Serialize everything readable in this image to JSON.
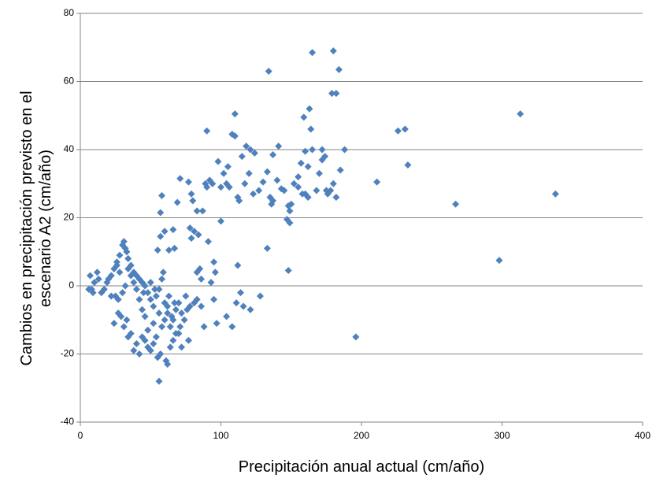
{
  "chart_data": {
    "type": "scatter",
    "color": "#4f81bd",
    "grid": true,
    "xlabel": "Precipitación anual actual (cm/año)",
    "ylabel": [
      "Cambios en precipitación  previsto en el",
      "escenario A2  (cm/año)"
    ],
    "xlim": [
      0,
      400
    ],
    "xticks": [
      0,
      100,
      200,
      300,
      400
    ],
    "ylim": [
      -40,
      80
    ],
    "yticks": [
      -40,
      -20,
      0,
      20,
      40,
      60,
      80
    ],
    "x": [
      338,
      313,
      298,
      267,
      233,
      231,
      226,
      211,
      196,
      188,
      185,
      184,
      182,
      179,
      180,
      165,
      134,
      163,
      159,
      164,
      110,
      90,
      108,
      110,
      98,
      102,
      105,
      118,
      121,
      124,
      115,
      137,
      133,
      130,
      143,
      148,
      149,
      147,
      149,
      150,
      148,
      133,
      128,
      114,
      116,
      121,
      111,
      108,
      104,
      97,
      95,
      96,
      95,
      93,
      91,
      88,
      83,
      86,
      83,
      84,
      81,
      78,
      79,
      83,
      77,
      79,
      80,
      71,
      69,
      66,
      63,
      67,
      60,
      57,
      57,
      58,
      55,
      62,
      63,
      60,
      61,
      62,
      57,
      56,
      55,
      54,
      52,
      50,
      48,
      46,
      44,
      42,
      40,
      38,
      36,
      34,
      33,
      31,
      29,
      27,
      24,
      25,
      27,
      22,
      19,
      17,
      15,
      13,
      12,
      10,
      8,
      7,
      6,
      9,
      20,
      22,
      24,
      26,
      28,
      30,
      31,
      32,
      33,
      34,
      36,
      38,
      40,
      42,
      44,
      46,
      48,
      50,
      52,
      54,
      56,
      58,
      60,
      62,
      64,
      66,
      68,
      70,
      72,
      74,
      76,
      78,
      72,
      68,
      66,
      64,
      58,
      56,
      52,
      48,
      46,
      44,
      42,
      40,
      38,
      36,
      34,
      32,
      30,
      28,
      26,
      45,
      50,
      53,
      59,
      65,
      67,
      70,
      71,
      75,
      77,
      81,
      85,
      86,
      87,
      89,
      92,
      90,
      94,
      100,
      104,
      106,
      112,
      113,
      117,
      120,
      123,
      127,
      135,
      140,
      145,
      152,
      155,
      158,
      160,
      162,
      160,
      165,
      168,
      170,
      172,
      174,
      175,
      178,
      180,
      182,
      172,
      176,
      162,
      155,
      157,
      141,
      137,
      136,
      100,
      112
    ],
    "values": [
      27,
      50.5,
      7.5,
      24,
      35.5,
      46,
      45.5,
      30.5,
      -15,
      40,
      34,
      63.5,
      56.5,
      56.5,
      69,
      68.5,
      63,
      52,
      49.5,
      46,
      50.5,
      45.5,
      44.5,
      44,
      36.5,
      33,
      35,
      41,
      40,
      39,
      38,
      38.5,
      33.5,
      30.5,
      28.5,
      23.5,
      22,
      19.5,
      18.5,
      24,
      4.5,
      11,
      -3,
      -2,
      -6,
      -7,
      -5,
      -12,
      -9,
      -11,
      -4,
      4,
      7,
      1,
      13,
      -12,
      -4,
      -6,
      4,
      15,
      16,
      17,
      14,
      22,
      30.5,
      27,
      25,
      31.5,
      24.5,
      16.5,
      10.5,
      11,
      16,
      14.5,
      21.5,
      26.5,
      10.5,
      -6,
      -3,
      -10,
      -22,
      -23,
      -20,
      -28,
      -21,
      -15,
      -17,
      -19,
      -18,
      -16,
      -15,
      -20,
      -17,
      -19,
      -14,
      -15,
      -10,
      -12,
      -9,
      -8,
      -11,
      -3,
      -4,
      -3,
      1,
      -1,
      -2,
      2,
      4,
      1,
      -1,
      3,
      -1,
      -2,
      2,
      3,
      5,
      7,
      9,
      12,
      13,
      11,
      10,
      8,
      6,
      4,
      3,
      2,
      1,
      0,
      -2,
      -4,
      -6,
      -3,
      -1,
      2,
      -5,
      -8,
      -12,
      -10,
      -7,
      -5,
      -8,
      -10,
      -7,
      -6,
      -18,
      -14,
      -16,
      -18,
      -12,
      -8,
      -11,
      -13,
      -9,
      -7,
      -4,
      -1,
      1,
      3,
      5,
      0,
      -2,
      4,
      6,
      -2,
      1,
      -1,
      4,
      -9,
      -5,
      -14,
      -12,
      -3,
      -16,
      -5,
      5,
      2,
      22,
      30,
      31,
      29,
      30,
      29,
      30,
      29,
      26,
      25,
      30,
      33,
      27,
      28,
      26,
      31,
      28,
      30,
      29,
      27,
      27,
      35,
      39.5,
      40,
      28,
      33,
      37,
      38,
      28,
      28,
      30,
      26,
      40,
      27,
      26,
      32,
      36,
      41,
      25,
      24,
      19,
      6
    ]
  }
}
